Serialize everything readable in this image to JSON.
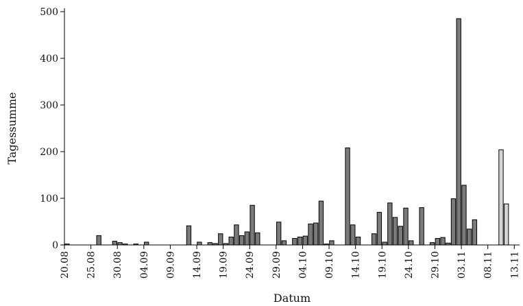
{
  "chart_data": {
    "type": "bar",
    "xlabel": "Datum",
    "ylabel": "Tagessumme",
    "ylim": [
      0,
      500
    ],
    "yticks": [
      0,
      100,
      200,
      300,
      400,
      500
    ],
    "xlim": [
      "2023-08-20",
      "2023-11-14"
    ],
    "xtick_labels": [
      "20.08",
      "25.08",
      "30.08",
      "04.09",
      "09.09",
      "14.09",
      "19.09",
      "24.09",
      "29.09",
      "04.10",
      "09.10",
      "14.10",
      "19.10",
      "24.10",
      "29.10",
      "03.11",
      "08.11",
      "13.11"
    ],
    "grid": false,
    "colors": {
      "main": "#7a7a7a",
      "secondary": "#d4d4d4"
    },
    "series": [
      {
        "color": "#7a7a7a",
        "x": [
          "2023-08-20",
          "2023-08-26",
          "2023-08-29",
          "2023-08-30",
          "2023-08-31",
          "2023-09-02",
          "2023-09-04",
          "2023-09-12",
          "2023-09-14",
          "2023-09-16",
          "2023-09-17",
          "2023-09-18",
          "2023-09-19",
          "2023-09-20",
          "2023-09-21",
          "2023-09-22",
          "2023-09-23",
          "2023-09-24",
          "2023-09-25",
          "2023-09-29",
          "2023-09-30",
          "2023-10-02",
          "2023-10-03",
          "2023-10-04",
          "2023-10-05",
          "2023-10-06",
          "2023-10-07",
          "2023-10-08",
          "2023-10-09",
          "2023-10-12",
          "2023-10-13",
          "2023-10-14",
          "2023-10-17",
          "2023-10-18",
          "2023-10-19",
          "2023-10-20",
          "2023-10-21",
          "2023-10-22",
          "2023-10-23",
          "2023-10-24",
          "2023-10-26",
          "2023-10-28",
          "2023-10-29",
          "2023-10-30",
          "2023-10-31",
          "2023-11-01",
          "2023-11-02",
          "2023-11-03",
          "2023-11-04",
          "2023-11-05"
        ],
        "values": [
          2,
          20,
          8,
          5,
          2,
          2,
          6,
          41,
          6,
          5,
          3,
          24,
          3,
          17,
          43,
          20,
          28,
          85,
          26,
          49,
          9,
          14,
          17,
          19,
          45,
          47,
          94,
          2,
          9,
          208,
          43,
          17,
          24,
          70,
          6,
          90,
          59,
          40,
          79,
          9,
          80,
          5,
          14,
          16,
          4,
          99,
          485,
          128,
          34,
          54
        ]
      },
      {
        "color": "#d4d4d4",
        "x": [
          "2023-11-10",
          "2023-11-11"
        ],
        "values": [
          204,
          88
        ]
      }
    ]
  }
}
